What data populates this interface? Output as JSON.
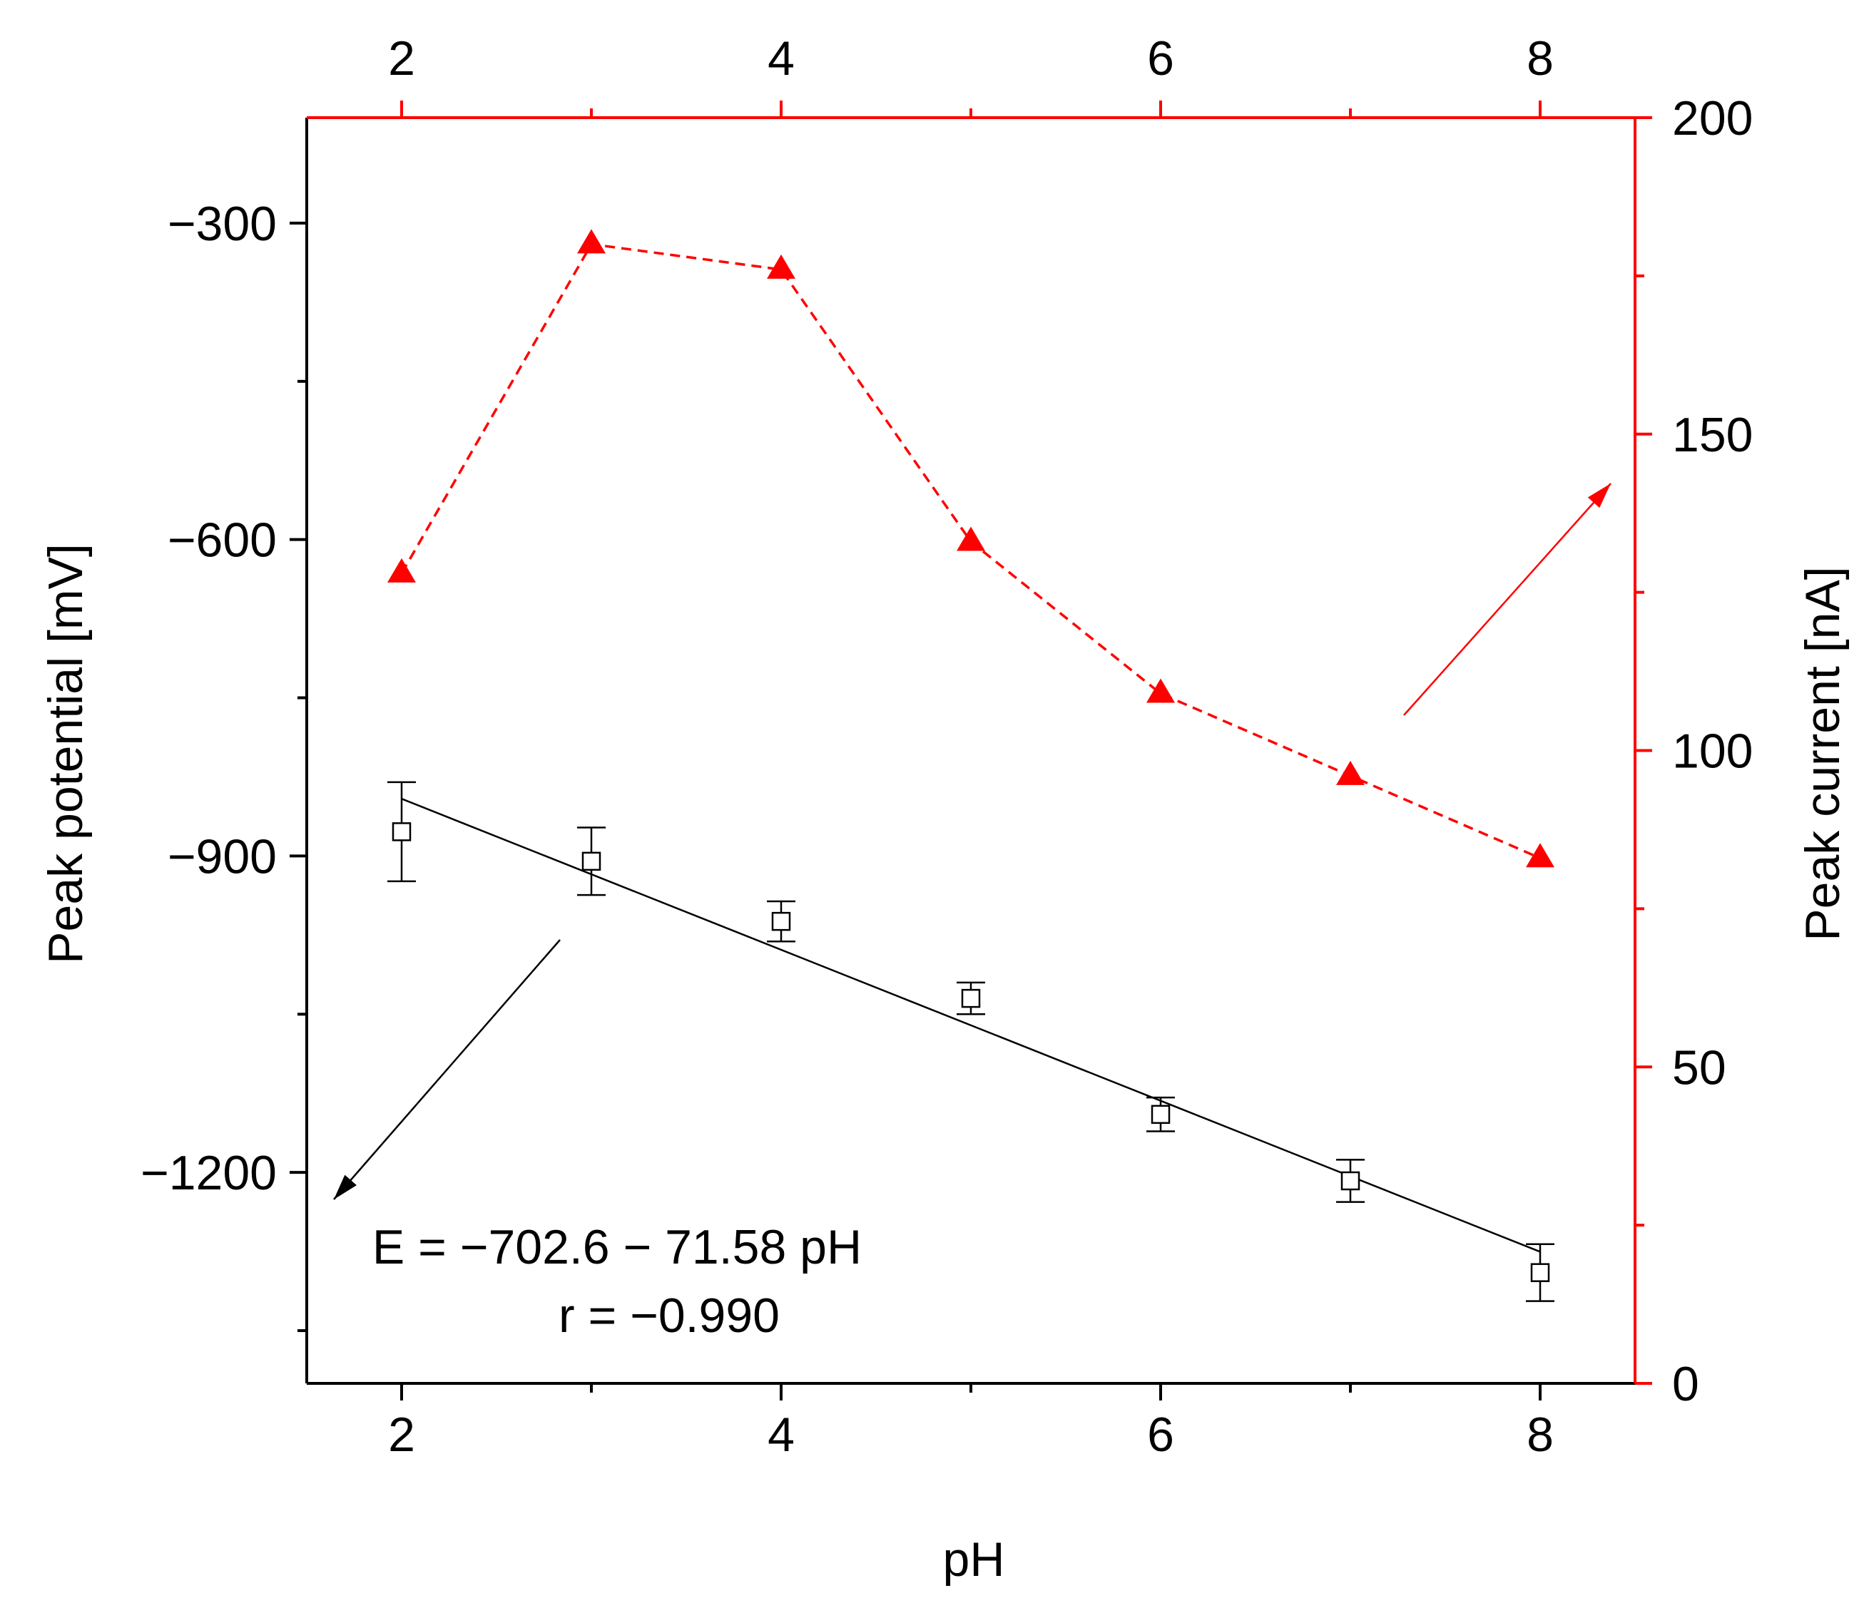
{
  "chart_data": {
    "type": "scatter",
    "xlabel": "pH",
    "ylabel_left": "Peak potential [mV]",
    "ylabel_right": "Peak current [nA]",
    "xlim": [
      1.5,
      8.5
    ],
    "ylim_left": [
      -1400,
      -200
    ],
    "ylim_right": [
      0,
      200
    ],
    "x_ticks": [
      2,
      4,
      6,
      8
    ],
    "x_minor_ticks": [
      3,
      5,
      7
    ],
    "y_left_ticks": [
      -300,
      -600,
      -900,
      -1200
    ],
    "y_left_minor_ticks": [
      -450,
      -750,
      -1050,
      -1350
    ],
    "y_right_ticks": [
      0,
      50,
      100,
      150,
      200
    ],
    "y_right_minor_ticks": [
      25,
      75,
      125,
      175
    ],
    "tick_labels": {
      "x": [
        "2",
        "4",
        "6",
        "8"
      ],
      "y_left": [
        "−300",
        "−600",
        "−900",
        "−1200"
      ],
      "y_right": [
        "0",
        "50",
        "100",
        "150",
        "200"
      ]
    },
    "series": [
      {
        "axis": "left",
        "marker": "open-square",
        "color": "#000000",
        "x": [
          2,
          3,
          4,
          5,
          6,
          7,
          8
        ],
        "y": [
          -877,
          -905,
          -962,
          -1035,
          -1145,
          -1208,
          -1295
        ],
        "yerr": [
          47,
          32,
          19,
          15,
          16,
          20,
          27
        ]
      },
      {
        "axis": "right",
        "marker": "filled-triangle",
        "line": "dashed",
        "color": "#ff0000",
        "x": [
          2,
          3,
          4,
          5,
          6,
          7,
          8
        ],
        "y": [
          128,
          180,
          176,
          133,
          109,
          96,
          83
        ]
      }
    ],
    "fit_line": {
      "intercept": -702.6,
      "slope": -71.58,
      "x_range": [
        2,
        8
      ],
      "color": "#000000"
    },
    "annotations": {
      "equation": "E = −702.6 − 71.58 pH",
      "correlation": "r = −0.990"
    },
    "colors": {
      "left_axis": "#000000",
      "right_axis": "#ff0000"
    },
    "grid": false
  }
}
